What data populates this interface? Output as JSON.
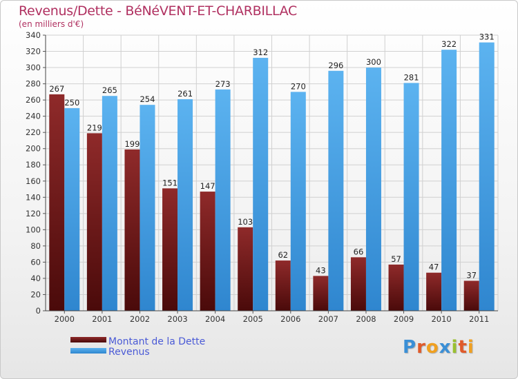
{
  "header": {
    "title": "Revenus/Dette - BéNéVENT-ET-CHARBILLAC",
    "subtitle": "(en milliers d'€)"
  },
  "logo": {
    "text": "Proxiti"
  },
  "colors": {
    "debt": "#7a1e1e",
    "revenue": "#4aa3e6",
    "title": "#b03060"
  },
  "chart_data": {
    "type": "bar",
    "categories": [
      "2000",
      "2001",
      "2002",
      "2003",
      "2004",
      "2005",
      "2006",
      "2007",
      "2008",
      "2009",
      "2010",
      "2011"
    ],
    "series": [
      {
        "name": "Montant de la Dette",
        "values": [
          267,
          219,
          199,
          151,
          147,
          103,
          62,
          43,
          66,
          57,
          47,
          37
        ]
      },
      {
        "name": "Revenus",
        "values": [
          250,
          265,
          254,
          261,
          273,
          312,
          270,
          296,
          300,
          281,
          322,
          331
        ]
      }
    ],
    "ylim": [
      0,
      340
    ],
    "yticks": [
      0,
      20,
      40,
      60,
      80,
      100,
      120,
      140,
      160,
      180,
      200,
      220,
      240,
      260,
      280,
      300,
      320,
      340
    ],
    "grid": true,
    "legend": "bottom-left"
  }
}
